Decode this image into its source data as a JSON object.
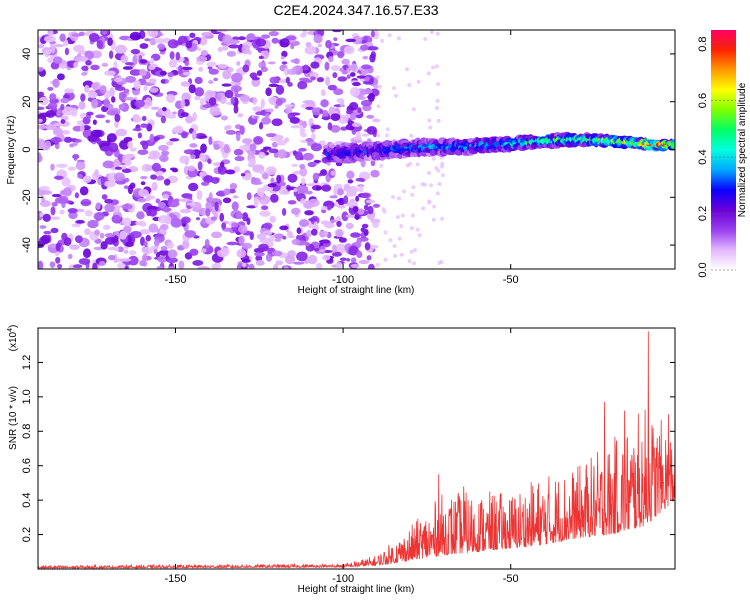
{
  "title": "C2E4.2024.347.16.57.E33",
  "chart_data": [
    {
      "type": "heatmap",
      "xlabel": "Height of straight line (km)",
      "ylabel": "Frequency (Hz)",
      "xlim": [
        -191,
        -1
      ],
      "ylim": [
        -50,
        50
      ],
      "xticks": [
        -150,
        -100,
        -50
      ],
      "yticks": [
        -40,
        -20,
        0,
        20,
        40
      ],
      "colorbar": {
        "label": "Normalized spectral amplitude",
        "range": [
          0,
          0.85
        ],
        "ticks": [
          0.0,
          0.2,
          0.4,
          0.6,
          0.8
        ],
        "colors": [
          "#ffffff",
          "#e4b8ff",
          "#9a3ff0",
          "#6a00d8",
          "#0a00ff",
          "#00a8ff",
          "#00ffe0",
          "#00ff66",
          "#7fff00",
          "#ffff00",
          "#ff9a00",
          "#ff2200",
          "#ff0066"
        ]
      },
      "signal_track": [
        {
          "x": -105,
          "freq": -2,
          "amp": 0.3
        },
        {
          "x": -95,
          "freq": -1,
          "amp": 0.32
        },
        {
          "x": -85,
          "freq": 0,
          "amp": 0.35
        },
        {
          "x": -75,
          "freq": 1,
          "amp": 0.4
        },
        {
          "x": -65,
          "freq": 1,
          "amp": 0.42
        },
        {
          "x": -55,
          "freq": 2,
          "amp": 0.45
        },
        {
          "x": -45,
          "freq": 3,
          "amp": 0.5
        },
        {
          "x": -35,
          "freq": 4,
          "amp": 0.55
        },
        {
          "x": -25,
          "freq": 4,
          "amp": 0.6
        },
        {
          "x": -15,
          "freq": 3,
          "amp": 0.7
        },
        {
          "x": -8,
          "freq": 2,
          "amp": 0.8
        },
        {
          "x": -2,
          "freq": 2,
          "amp": 0.85
        }
      ],
      "noise_region_x": [
        -191,
        -90
      ]
    },
    {
      "type": "line",
      "xlabel": "Height of straight line (km)",
      "ylabel": "SNR (10 * v/v)",
      "y_multiplier_label": "(x10",
      "y_multiplier_exp": "4",
      "y_multiplier_close": ")",
      "xlim": [
        -191,
        -1
      ],
      "ylim": [
        0,
        1.4
      ],
      "xticks": [
        -150,
        -100,
        -50
      ],
      "yticks": [
        0.2,
        0.4,
        0.6,
        0.8,
        1.0,
        1.2
      ],
      "line_color": "#ee3333",
      "envelope": [
        {
          "x": -191,
          "base": 0.005,
          "peak": 0.02
        },
        {
          "x": -100,
          "base": 0.01,
          "peak": 0.03
        },
        {
          "x": -90,
          "base": 0.02,
          "peak": 0.08
        },
        {
          "x": -80,
          "base": 0.05,
          "peak": 0.25
        },
        {
          "x": -70,
          "base": 0.08,
          "peak": 0.45
        },
        {
          "x": -60,
          "base": 0.1,
          "peak": 0.45
        },
        {
          "x": -50,
          "base": 0.12,
          "peak": 0.45
        },
        {
          "x": -40,
          "base": 0.14,
          "peak": 0.55
        },
        {
          "x": -30,
          "base": 0.18,
          "peak": 0.6
        },
        {
          "x": -20,
          "base": 0.2,
          "peak": 0.75
        },
        {
          "x": -10,
          "base": 0.25,
          "peak": 0.95
        },
        {
          "x": -1,
          "base": 0.4,
          "peak": 0.8
        }
      ],
      "spikes": [
        {
          "x": -71.5,
          "y": 0.55
        },
        {
          "x": -64,
          "y": 0.48
        },
        {
          "x": -22,
          "y": 0.97
        },
        {
          "x": -16,
          "y": 0.92
        },
        {
          "x": -9,
          "y": 1.38
        },
        {
          "x": -3,
          "y": 0.9
        }
      ]
    }
  ]
}
